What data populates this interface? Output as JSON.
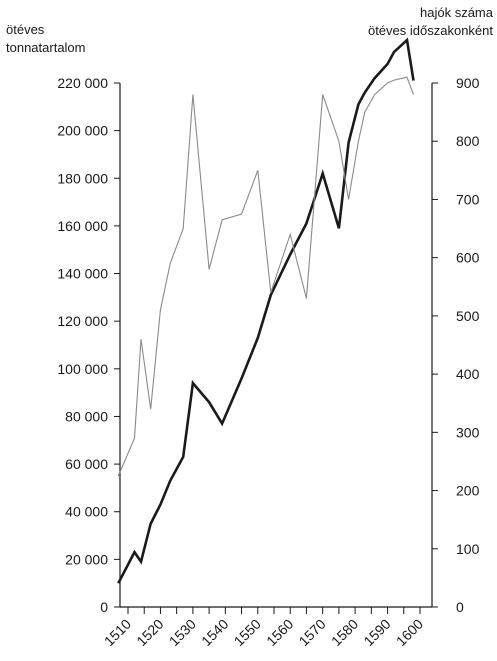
{
  "chart_data": {
    "type": "line",
    "title": "",
    "xlabel": "",
    "left_axis": {
      "title_lines": [
        "ötéves",
        "tonnatartalom"
      ],
      "range": [
        0,
        220000
      ],
      "ticks": [
        0,
        20000,
        40000,
        60000,
        80000,
        100000,
        120000,
        140000,
        160000,
        180000,
        200000,
        220000
      ],
      "tick_labels": [
        "0",
        "20 000",
        "40 000",
        "60 000",
        "80 000",
        "100 000",
        "120 000",
        "140 000",
        "160 000",
        "180 000",
        "200 000",
        "220 000"
      ]
    },
    "right_axis": {
      "title_lines": [
        "hajók száma",
        "ötéves időszakonként"
      ],
      "range": [
        0,
        900
      ],
      "ticks": [
        0,
        100,
        200,
        300,
        400,
        500,
        600,
        700,
        800,
        900
      ],
      "tick_labels": [
        "0",
        "100",
        "200",
        "300",
        "400",
        "500",
        "600",
        "700",
        "800",
        "900"
      ]
    },
    "x_axis": {
      "range": [
        1510,
        1600
      ],
      "ticks": [
        1510,
        1515,
        1520,
        1525,
        1530,
        1535,
        1540,
        1545,
        1550,
        1555,
        1560,
        1565,
        1570,
        1575,
        1580,
        1585,
        1590,
        1595,
        1600
      ],
      "tick_labels": [
        "1510",
        "1520",
        "1530",
        "1540",
        "1550",
        "1560",
        "1570",
        "1580",
        "1590",
        "1600"
      ],
      "labeled_ticks": [
        1510,
        1520,
        1530,
        1540,
        1550,
        1560,
        1570,
        1580,
        1590,
        1600
      ]
    },
    "grid": false,
    "series": [
      {
        "axis": "left",
        "color": "#1a1a1a",
        "style": "thick",
        "x": [
          1507,
          1512,
          1514,
          1517,
          1520,
          1523,
          1527,
          1530,
          1535,
          1539,
          1545,
          1550,
          1554,
          1560,
          1565,
          1570,
          1575,
          1578,
          1581,
          1583,
          1586,
          1590,
          1592,
          1596,
          1598
        ],
        "values": [
          10000,
          23000,
          19000,
          35000,
          43000,
          53000,
          63000,
          94000,
          86000,
          77000,
          96000,
          113000,
          131000,
          148000,
          161000,
          182000,
          159000,
          195000,
          211000,
          216000,
          222000,
          228000,
          233000,
          238000,
          221000
        ]
      },
      {
        "axis": "right",
        "color": "#8a8a8a",
        "style": "thin",
        "x": [
          1507,
          1512,
          1514,
          1517,
          1520,
          1523,
          1527,
          1530,
          1535,
          1539,
          1545,
          1550,
          1554,
          1560,
          1565,
          1570,
          1575,
          1578,
          1581,
          1583,
          1586,
          1590,
          1592,
          1596,
          1598
        ],
        "values": [
          225,
          290,
          460,
          340,
          510,
          590,
          650,
          880,
          580,
          665,
          675,
          750,
          540,
          640,
          530,
          880,
          800,
          700,
          800,
          850,
          880,
          900,
          905,
          910,
          880
        ]
      }
    ]
  }
}
